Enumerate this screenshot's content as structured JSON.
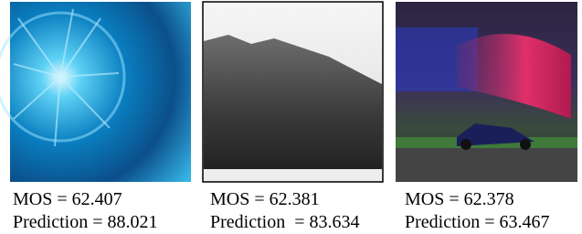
{
  "figure": {
    "panels": [
      {
        "mos": "MOS = 62.407",
        "prediction": "Prediction = 88.021"
      },
      {
        "mos": "MOS = 62.381",
        "prediction": "Prediction  = 83.634"
      },
      {
        "mos": "MOS = 62.378",
        "prediction": "Prediction = 63.467"
      }
    ]
  }
}
